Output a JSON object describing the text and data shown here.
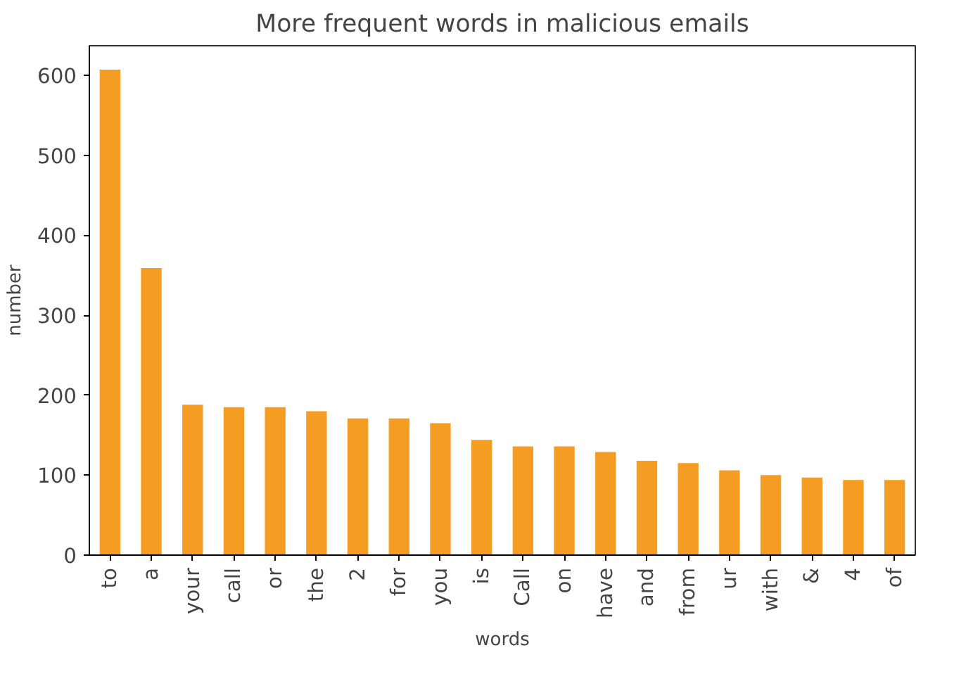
{
  "chart_data": {
    "type": "bar",
    "title": "More frequent words in malicious emails",
    "xlabel": "words",
    "ylabel": "number",
    "categories": [
      "to",
      "a",
      "your",
      "call",
      "or",
      "the",
      "2",
      "for",
      "you",
      "is",
      "Call",
      "on",
      "have",
      "and",
      "from",
      "ur",
      "with",
      "&",
      "4",
      "of"
    ],
    "values": [
      607,
      359,
      188,
      185,
      185,
      180,
      171,
      171,
      165,
      144,
      136,
      136,
      129,
      118,
      115,
      106,
      100,
      97,
      94,
      94
    ],
    "color": "#f59d22",
    "ylim": [
      0,
      637
    ],
    "yticks": [
      0,
      100,
      200,
      300,
      400,
      500,
      600
    ],
    "grid": false
  }
}
